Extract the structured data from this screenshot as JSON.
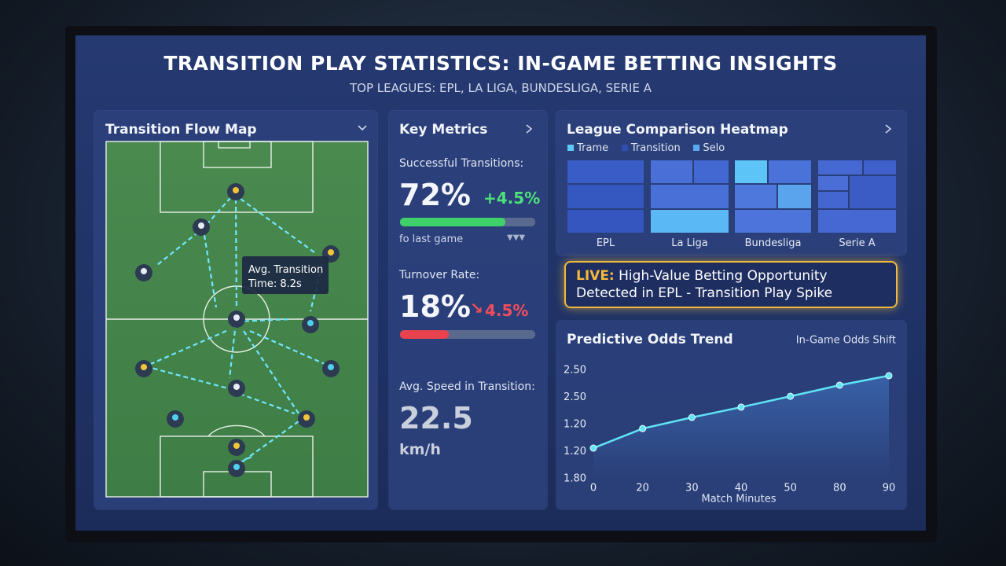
{
  "header": {
    "title": "TRANSITION PLAY STATISTICS: IN-GAME BETTING INSIGHTS",
    "subtitle": "TOP LEAGUES: EPL, LA LIGA, BUNDESLIGA, SERIE A"
  },
  "flow_map": {
    "title": "Transition Flow Map",
    "tooltip": [
      "Avg. Transition",
      "Time: 8.2s"
    ]
  },
  "key_metrics": {
    "title": "Key Metrics",
    "successful": {
      "label": "Successful Transitions:",
      "value": "72%",
      "change": "+4.5%",
      "note": "fo last game"
    },
    "turnover": {
      "label": "Turnover Rate:",
      "value": "18%",
      "change": "4.5%"
    },
    "speed": {
      "label": "Avg. Speed in Transition:",
      "value": "22.5",
      "unit": "km/h"
    }
  },
  "heatmap": {
    "title": "League Comparison Heatmap",
    "legend": [
      "Trame",
      "Transition",
      "Selo"
    ],
    "leagues": [
      "EPL",
      "La Liga",
      "Bundesliga",
      "Serie A"
    ]
  },
  "alert": {
    "prefix": "LIVE:",
    "line1": "High-Value Betting Opportunity",
    "line2": "Detected in EPL - Transition Play Spike"
  },
  "chart_data": {
    "type": "line",
    "title": "Predictive Odds Trend",
    "subtitle": "In-Game Odds Shift",
    "x_label": "Match Minutes",
    "categories": [
      "0",
      "20",
      "30",
      "40",
      "50",
      "80",
      "90"
    ],
    "series": [
      {
        "name": "In-Game Odds Shift",
        "color": "#5fe3f5",
        "values": [
          1.13,
          1.85,
          2.26,
          2.64,
          3.04,
          3.45,
          3.8
        ]
      }
    ],
    "ylim": [
      0,
      4
    ],
    "yticks": [
      {
        "value": 0,
        "label": "1.80"
      },
      {
        "value": 1,
        "label": "1.20"
      },
      {
        "value": 2,
        "label": "1.20"
      },
      {
        "value": 3,
        "label": "2.50"
      },
      {
        "value": 4,
        "label": "2.50"
      }
    ]
  }
}
